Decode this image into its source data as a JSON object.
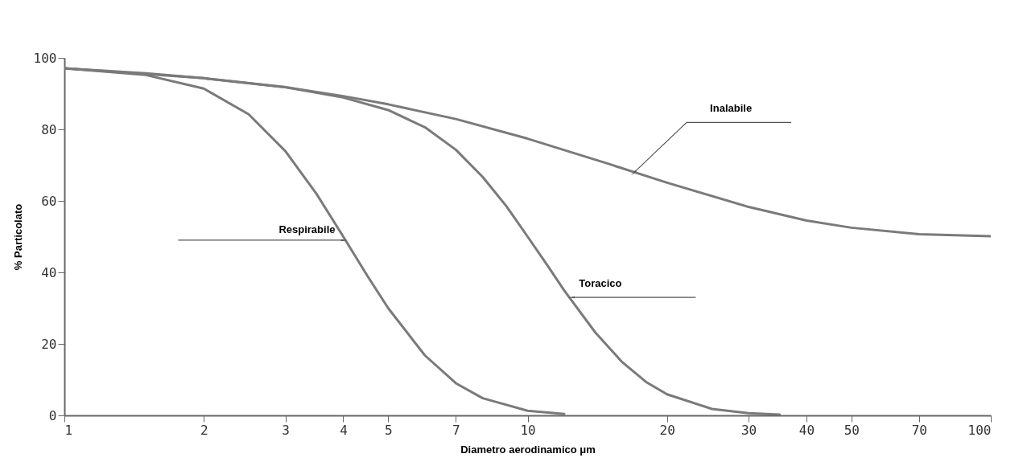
{
  "chart_data": {
    "type": "line",
    "xlabel": "Diametro aerodinamico μm",
    "ylabel": "% Particolato",
    "log": "x",
    "xlim": [
      1,
      100
    ],
    "xticks": [
      1,
      2,
      3,
      4,
      5,
      7,
      10,
      20,
      30,
      40,
      50,
      70,
      100
    ],
    "ylim": [
      0,
      100
    ],
    "yticks": [
      0,
      20,
      40,
      60,
      80,
      100
    ],
    "grid": false,
    "legend": false,
    "series": [
      {
        "color": "#7a7a7a",
        "x": [
          1,
          1.5,
          2,
          3,
          4,
          5,
          7,
          10,
          15,
          20,
          30,
          40,
          50,
          70,
          100
        ],
        "values": [
          97.1,
          95.7,
          94.3,
          91.8,
          89.3,
          87.0,
          82.9,
          77.4,
          70.3,
          65.1,
          58.3,
          54.5,
          52.5,
          50.7,
          50.1
        ]
      },
      {
        "color": "#7a7a7a",
        "x": [
          1,
          2,
          3,
          4,
          5,
          6,
          7,
          8,
          9,
          10,
          11,
          12,
          14,
          16,
          18,
          20,
          25,
          30,
          35
        ],
        "values": [
          97.1,
          94.3,
          91.8,
          88.9,
          85.4,
          80.6,
          74.3,
          66.7,
          58.5,
          50.0,
          42.2,
          34.9,
          23.2,
          14.9,
          9.4,
          5.9,
          1.8,
          0.6,
          0.2
        ]
      },
      {
        "color": "#7a7a7a",
        "x": [
          1,
          1.5,
          2,
          2.5,
          3,
          3.5,
          4,
          4.5,
          5,
          6,
          7,
          8,
          10,
          12
        ],
        "values": [
          97.1,
          95.2,
          91.4,
          84.2,
          73.9,
          62.0,
          50.0,
          39.2,
          30.0,
          16.8,
          9.0,
          4.8,
          1.3,
          0.4
        ]
      }
    ],
    "annotations": [
      {
        "text": "Inalabile",
        "x": 17,
        "y": 68
      },
      {
        "text": "Toracico",
        "x": 12.5,
        "y": 33
      },
      {
        "text": "Respirabile",
        "x": 4,
        "y": 49
      }
    ]
  }
}
